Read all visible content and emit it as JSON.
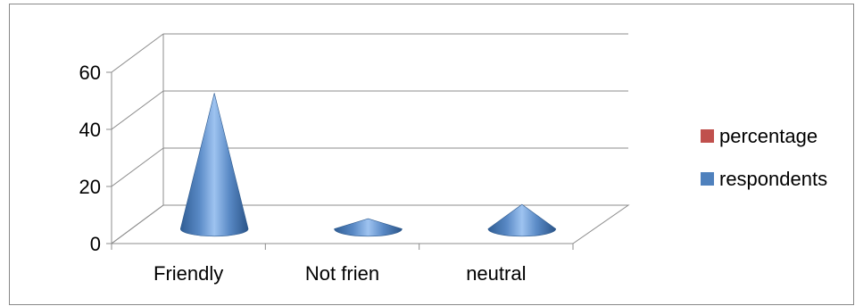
{
  "chart_data": {
    "type": "bar",
    "style": "3d-cone",
    "categories": [
      "Friendly",
      "Not frien",
      "neutral"
    ],
    "series": [
      {
        "name": "respondents",
        "values": [
          46,
          2,
          7
        ],
        "color": "#4F81BD"
      },
      {
        "name": "percentage",
        "values": [
          0,
          0,
          0
        ],
        "color": "#C0504D"
      }
    ],
    "y_ticks": [
      "0",
      "20",
      "40",
      "60"
    ],
    "ylim": [
      0,
      60
    ],
    "grid": true,
    "legend_position": "right"
  }
}
